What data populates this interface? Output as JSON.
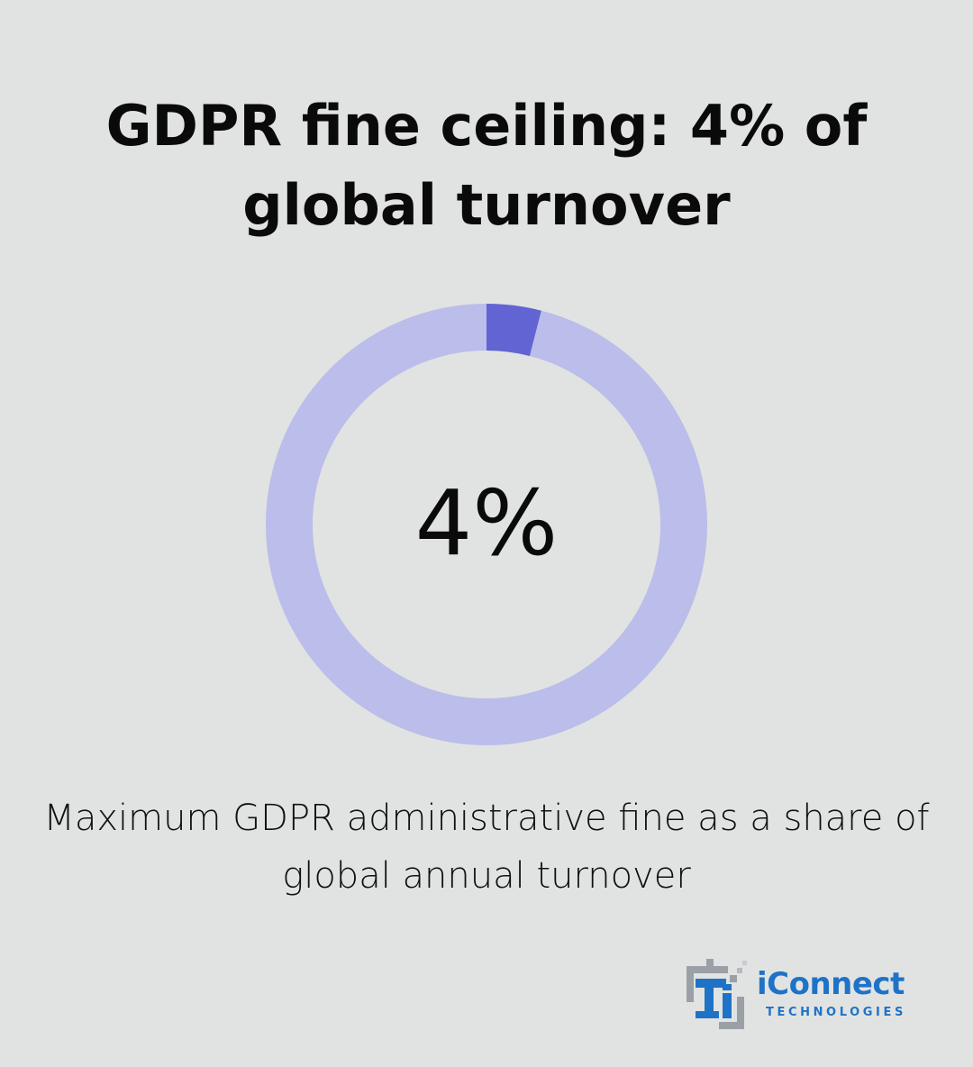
{
  "title": "GDPR fine ceiling: 4% of global turnover",
  "chart_data": {
    "type": "pie",
    "style": "donut",
    "center_label": "4%",
    "slices": [
      {
        "value": 4,
        "color": "#6164d2"
      },
      {
        "value": 96,
        "color": "#bbbdea"
      }
    ]
  },
  "caption": "Maximum GDPR administrative fine as a share of global annual turnover",
  "logo": {
    "name": "iConnect",
    "subtitle": "TECHNOLOGIES",
    "brand_color": "#1f73c7",
    "accent_color": "#9aa0a6"
  },
  "colors": {
    "background": "#e1e3e2",
    "highlight": "#6164d2",
    "track": "#bbbdea"
  }
}
